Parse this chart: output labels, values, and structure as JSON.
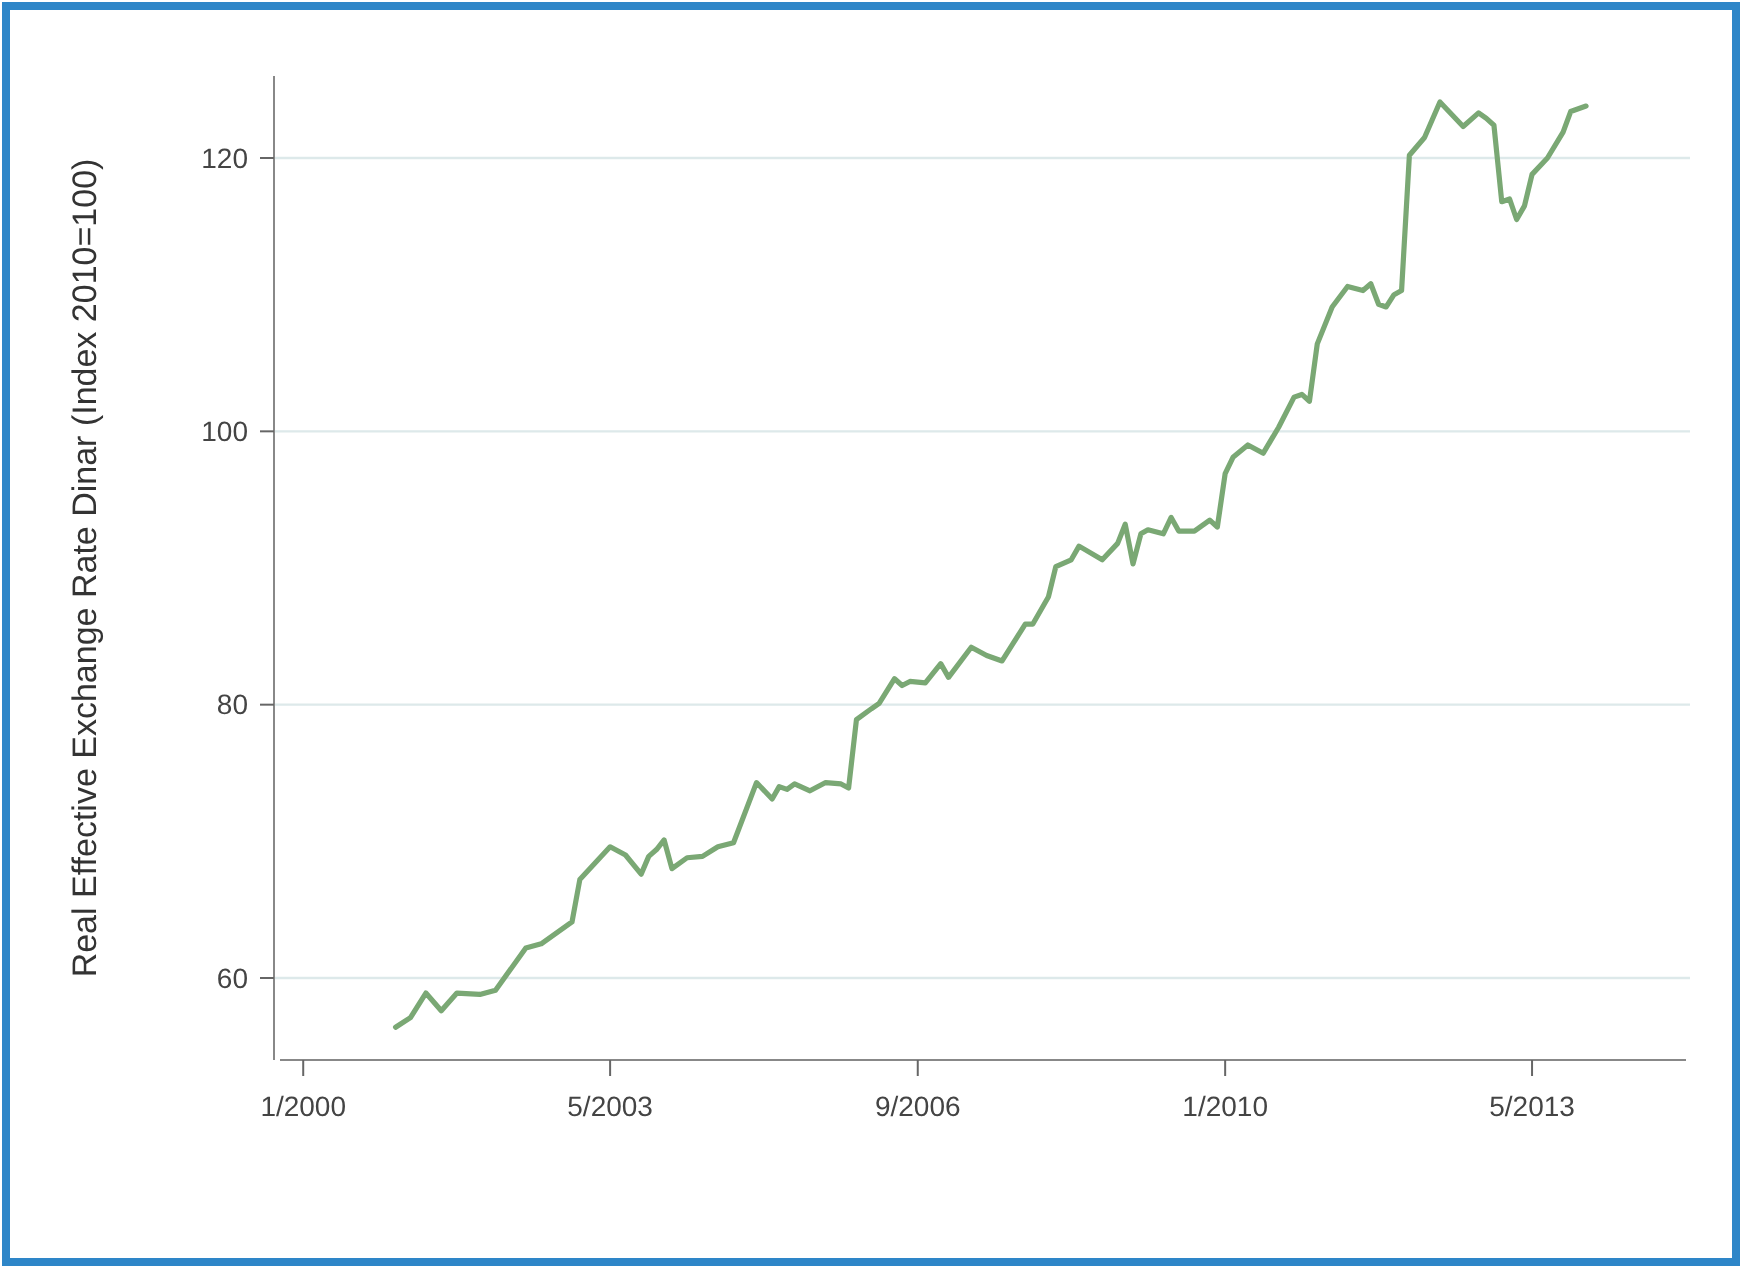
{
  "chart_data": {
    "type": "line",
    "ylabel": "Real Effective Exchange Rate Dinar (Index 2010=100)",
    "x": [
      "2001-01",
      "2001-03",
      "2001-05",
      "2001-07",
      "2001-09",
      "2001-12",
      "2002-02",
      "2002-06",
      "2002-08",
      "2002-12",
      "2003-01",
      "2003-05",
      "2003-07",
      "2003-09",
      "2003-10",
      "2003-11",
      "2003-12",
      "2004-01",
      "2004-03",
      "2004-05",
      "2004-07",
      "2004-09",
      "2004-12",
      "2005-02",
      "2005-03",
      "2005-04",
      "2005-05",
      "2005-07",
      "2005-09",
      "2005-11",
      "2005-12",
      "2006-01",
      "2006-03",
      "2006-04",
      "2006-06",
      "2006-07",
      "2006-08",
      "2006-10",
      "2006-12",
      "2007-01",
      "2007-04",
      "2007-06",
      "2007-08",
      "2007-11",
      "2007-12",
      "2008-02",
      "2008-03",
      "2008-05",
      "2008-06",
      "2008-09",
      "2008-11",
      "2008-12",
      "2009-01",
      "2009-02",
      "2009-03",
      "2009-05",
      "2009-06",
      "2009-07",
      "2009-09",
      "2009-11",
      "2009-12",
      "2010-01",
      "2010-02",
      "2010-04",
      "2010-06",
      "2010-08",
      "2010-10",
      "2010-11",
      "2010-12",
      "2011-01",
      "2011-03",
      "2011-05",
      "2011-07",
      "2011-08",
      "2011-09",
      "2011-10",
      "2011-11",
      "2011-12",
      "2012-01",
      "2012-03",
      "2012-05",
      "2012-08",
      "2012-10",
      "2012-11",
      "2012-12",
      "2013-01",
      "2013-02",
      "2013-03",
      "2013-04",
      "2013-05",
      "2013-07",
      "2013-09",
      "2013-10",
      "2013-12"
    ],
    "series": [
      {
        "color": "#7aa874",
        "values": [
          56.4,
          57.1,
          58.9,
          57.6,
          58.9,
          58.8,
          59.1,
          62.2,
          62.5,
          64.1,
          67.2,
          69.6,
          69.0,
          67.6,
          68.9,
          69.4,
          70.1,
          68.0,
          68.8,
          68.9,
          69.6,
          69.9,
          74.3,
          73.1,
          74.0,
          73.8,
          74.2,
          73.7,
          74.3,
          74.2,
          73.9,
          78.9,
          79.7,
          80.1,
          81.9,
          81.4,
          81.7,
          81.6,
          83.0,
          82.0,
          84.2,
          83.6,
          83.2,
          85.9,
          85.9,
          87.9,
          90.1,
          90.6,
          91.6,
          90.6,
          91.8,
          93.2,
          90.3,
          92.5,
          92.8,
          92.5,
          93.7,
          92.7,
          92.7,
          93.5,
          93.0,
          96.9,
          98.1,
          99.0,
          98.4,
          100.3,
          102.5,
          102.7,
          102.2,
          106.4,
          109.1,
          110.6,
          110.3,
          110.8,
          109.3,
          109.1,
          110.0,
          110.3,
          120.2,
          121.5,
          124.1,
          122.3,
          123.3,
          122.9,
          122.4,
          116.8,
          117.0,
          115.5,
          116.5,
          118.8,
          120.0,
          121.9,
          123.4,
          123.8
        ]
      }
    ],
    "xlim": [
      "1999-10",
      "2015-01"
    ],
    "xticks": [
      {
        "value": "2000-01",
        "label": "1/2000"
      },
      {
        "value": "2003-05",
        "label": "5/2003"
      },
      {
        "value": "2006-09",
        "label": "9/2006"
      },
      {
        "value": "2010-01",
        "label": "1/2010"
      },
      {
        "value": "2013-05",
        "label": "5/2013"
      }
    ],
    "ylim": [
      54,
      126
    ],
    "yticks": [
      60,
      80,
      100,
      120
    ],
    "grid": "y",
    "line_style": "solid",
    "marker": "none"
  }
}
